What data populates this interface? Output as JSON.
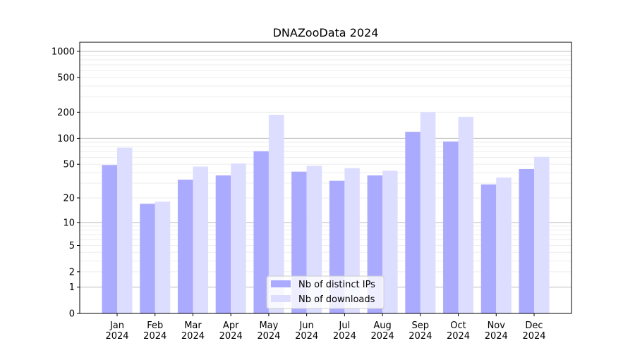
{
  "chart_data": {
    "type": "bar",
    "title": "DNAZooData 2024",
    "xlabel": "",
    "ylabel": "",
    "y_scale": "log(1+y)",
    "ylim": [
      0,
      1270
    ],
    "yticks": [
      0,
      1,
      2,
      5,
      10,
      20,
      50,
      100,
      200,
      500,
      1000
    ],
    "ytick_labels": [
      "0",
      "1",
      "2",
      "5",
      "10",
      "20",
      "50",
      "100",
      "200",
      "500",
      "1000"
    ],
    "grid": true,
    "legend_position": "bottom-center",
    "categories": [
      "Jan\n2024",
      "Feb\n2024",
      "Mar\n2024",
      "Apr\n2024",
      "May\n2024",
      "Jun\n2024",
      "Jul\n2024",
      "Aug\n2024",
      "Sep\n2024",
      "Oct\n2024",
      "Nov\n2024",
      "Dec\n2024"
    ],
    "series": [
      {
        "name": "Nb of distinct IPs",
        "color": "#aaaaff",
        "values": [
          49,
          17,
          33,
          37,
          71,
          41,
          32,
          37,
          119,
          92,
          29,
          44
        ]
      },
      {
        "name": "Nb of downloads",
        "color": "#ddddff",
        "values": [
          78,
          18,
          47,
          51,
          187,
          48,
          45,
          42,
          200,
          177,
          35,
          61
        ]
      }
    ]
  }
}
